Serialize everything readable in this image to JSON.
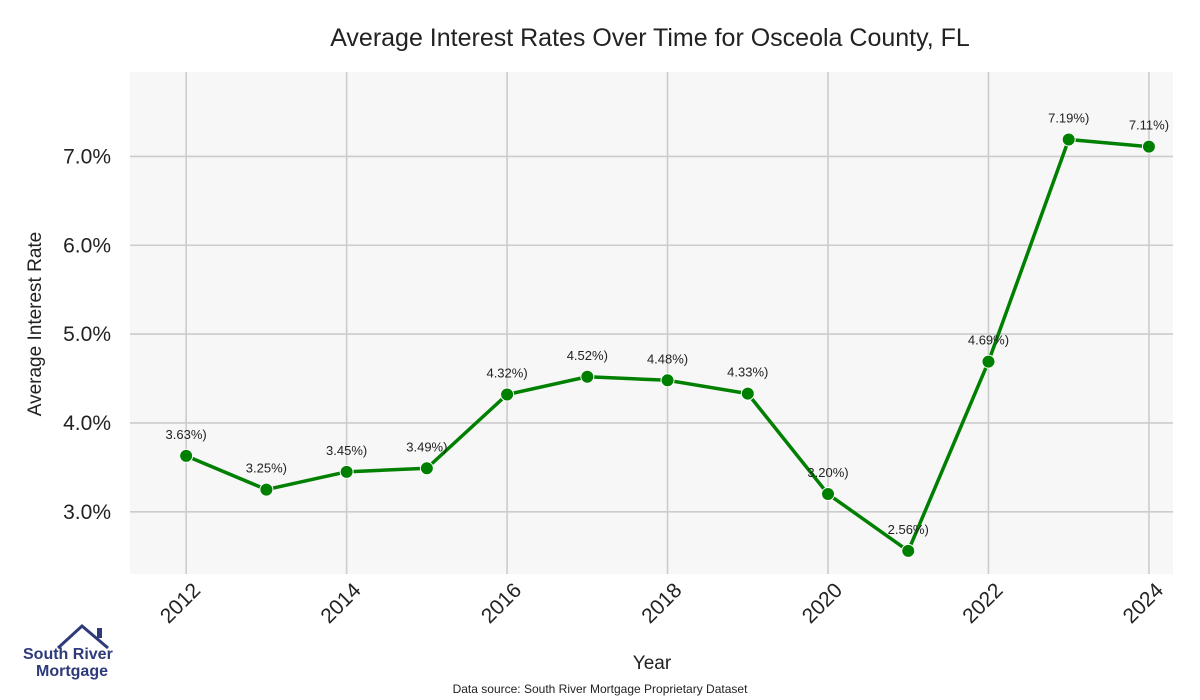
{
  "chart_data": {
    "type": "line",
    "title": "Average Interest Rates Over Time for Osceola County, FL",
    "xlabel": "Year",
    "ylabel": "Average Interest Rate",
    "x": [
      2012,
      2013,
      2014,
      2015,
      2016,
      2017,
      2018,
      2019,
      2020,
      2021,
      2022,
      2023,
      2024
    ],
    "series": [
      {
        "values": [
          3.63,
          3.25,
          3.45,
          3.49,
          4.32,
          4.52,
          4.48,
          4.33,
          3.2,
          2.56,
          4.69,
          7.19,
          7.11
        ],
        "labels": [
          "3.63%)",
          "3.25%)",
          "3.45%)",
          "3.49%)",
          "4.32%)",
          "4.52%)",
          "4.48%)",
          "4.33%)",
          "3.20%)",
          "2.56%)",
          "4.69%)",
          "7.19%)",
          "7.11%)"
        ],
        "color": "#008000"
      }
    ],
    "xticks": [
      "2012",
      "2014",
      "2016",
      "2018",
      "2020",
      "2022",
      "2024"
    ],
    "xtick_values": [
      2012,
      2014,
      2016,
      2018,
      2020,
      2022,
      2024
    ],
    "yticks": [
      "3.0%",
      "4.0%",
      "5.0%",
      "6.0%",
      "7.0%"
    ],
    "ytick_values": [
      3.0,
      4.0,
      5.0,
      6.0,
      7.0
    ],
    "xlim": [
      2011.3,
      2024.3
    ],
    "ylim": [
      2.3,
      7.95
    ],
    "grid": true,
    "background": "#f7f7f7",
    "grid_color": "#cccccc"
  },
  "source_note": "Data source: South River Mortgage Proprietary Dataset",
  "logo": {
    "line1": "South River",
    "line2": "Mortgage",
    "color": "#2e3a7a"
  }
}
